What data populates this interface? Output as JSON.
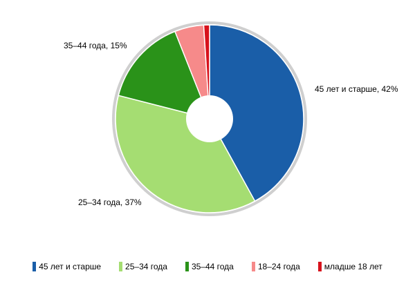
{
  "chart_data": {
    "type": "pie",
    "style": "donut",
    "categories": [
      "45 лет и старше",
      "25–34 года",
      "35–44 года",
      "18–24 года",
      "младше 18 лет"
    ],
    "values": [
      42,
      37,
      15,
      5,
      1
    ],
    "unit": "%",
    "colors": [
      "#1a5ea8",
      "#a5dd72",
      "#2a9219",
      "#f68a8a",
      "#d7121c"
    ],
    "data_labels": [
      {
        "index": 0,
        "text": "45 лет и старше, 42%"
      },
      {
        "index": 1,
        "text": "25–34 года, 37%"
      },
      {
        "index": 2,
        "text": "35–44 года, 15%"
      }
    ],
    "legend": {
      "placement": "bottom",
      "items": [
        "45 лет и старше",
        "25–34 года",
        "35–44 года",
        "18–24 года",
        "младше 18 лет"
      ]
    }
  }
}
